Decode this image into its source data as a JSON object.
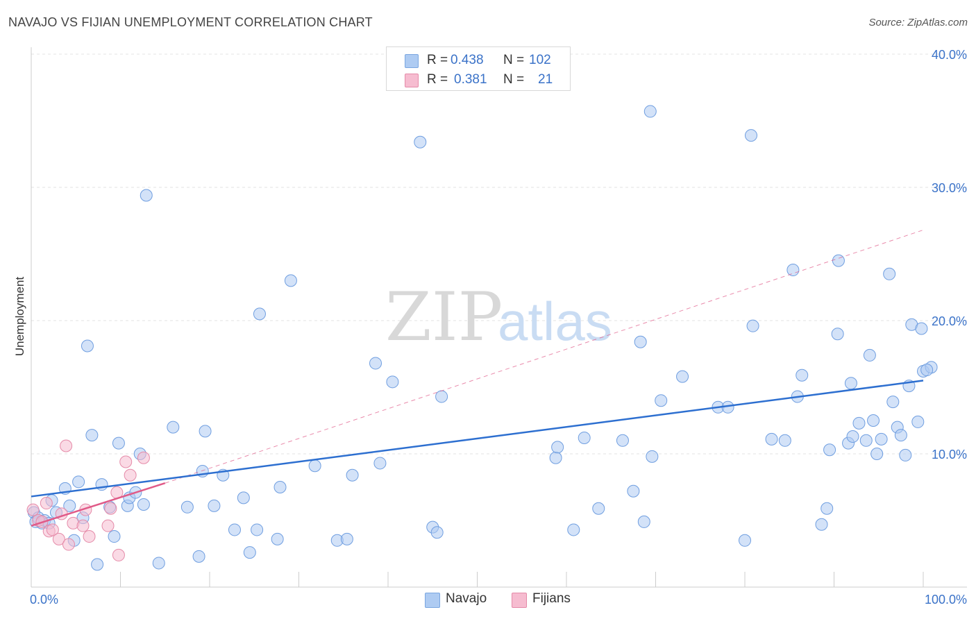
{
  "title": "NAVAJO VS FIJIAN UNEMPLOYMENT CORRELATION CHART",
  "source": "Source: ZipAtlas.com",
  "watermark": {
    "part1": "ZIP",
    "part2": "atlas"
  },
  "legend": {
    "rows": [
      {
        "r_label": "R =",
        "r_value": "0.438",
        "n_label": "N =",
        "n_value": "102",
        "color": "#aecbf2"
      },
      {
        "r_label": "R =",
        "r_value": "0.381",
        "n_label": "N =",
        "n_value": "21",
        "color": "#f6bcd0"
      }
    ]
  },
  "bottom_legend": [
    {
      "label": "Navajo",
      "color": "#aecbf2"
    },
    {
      "label": "Fijians",
      "color": "#f6bcd0"
    }
  ],
  "chart_data": {
    "type": "scatter",
    "title": "NAVAJO VS FIJIAN UNEMPLOYMENT CORRELATION CHART",
    "xlabel": "",
    "ylabel": "Unemployment",
    "xlim": [
      0,
      100
    ],
    "ylim": [
      0,
      40
    ],
    "x_tick_labels": [
      "0.0%",
      "100.0%"
    ],
    "y_ticks": [
      10,
      20,
      30,
      40
    ],
    "y_tick_labels": [
      "10.0%",
      "20.0%",
      "30.0%",
      "40.0%"
    ],
    "grid": true,
    "legend_position": "top-center",
    "colors": {
      "navajo_fill": "#aecbf2",
      "navajo_stroke": "#6f9ee0",
      "navajo_line": "#2d6fd0",
      "fijian_fill": "#f6bcd0",
      "fijian_stroke": "#e58aa8",
      "fijian_line": "#e05a88"
    },
    "series": [
      {
        "name": "Navajo",
        "trend": {
          "x": [
            0,
            100
          ],
          "y": [
            6.8,
            15.5
          ]
        },
        "points": [
          [
            0.3,
            5.6
          ],
          [
            0.5,
            4.9
          ],
          [
            0.8,
            5.2
          ],
          [
            1.2,
            4.8
          ],
          [
            1.5,
            5.0
          ],
          [
            2.0,
            4.8
          ],
          [
            2.3,
            6.5
          ],
          [
            2.8,
            5.6
          ],
          [
            3.8,
            7.4
          ],
          [
            4.3,
            6.1
          ],
          [
            4.8,
            3.5
          ],
          [
            5.3,
            7.9
          ],
          [
            5.8,
            5.2
          ],
          [
            6.3,
            18.1
          ],
          [
            6.8,
            11.4
          ],
          [
            7.4,
            1.7
          ],
          [
            7.9,
            7.7
          ],
          [
            8.8,
            6.0
          ],
          [
            9.3,
            3.8
          ],
          [
            9.8,
            10.8
          ],
          [
            10.8,
            6.1
          ],
          [
            11.0,
            6.7
          ],
          [
            11.7,
            7.1
          ],
          [
            12.6,
            6.2
          ],
          [
            12.2,
            10.0
          ],
          [
            12.9,
            29.4
          ],
          [
            14.3,
            1.8
          ],
          [
            15.9,
            12.0
          ],
          [
            17.5,
            6.0
          ],
          [
            18.8,
            2.3
          ],
          [
            19.2,
            8.7
          ],
          [
            19.5,
            11.7
          ],
          [
            20.5,
            6.1
          ],
          [
            21.5,
            8.4
          ],
          [
            22.8,
            4.3
          ],
          [
            23.8,
            6.7
          ],
          [
            24.5,
            2.6
          ],
          [
            25.3,
            4.3
          ],
          [
            25.6,
            20.5
          ],
          [
            27.6,
            3.6
          ],
          [
            27.9,
            7.5
          ],
          [
            29.1,
            23.0
          ],
          [
            31.8,
            9.1
          ],
          [
            34.3,
            3.5
          ],
          [
            35.4,
            3.6
          ],
          [
            36.0,
            8.4
          ],
          [
            38.6,
            16.8
          ],
          [
            39.1,
            9.3
          ],
          [
            40.5,
            15.4
          ],
          [
            43.6,
            33.4
          ],
          [
            45.0,
            4.5
          ],
          [
            45.5,
            4.1
          ],
          [
            46.0,
            14.3
          ],
          [
            58.8,
            9.7
          ],
          [
            59.0,
            10.5
          ],
          [
            60.8,
            4.3
          ],
          [
            62.0,
            11.2
          ],
          [
            63.6,
            5.9
          ],
          [
            66.3,
            11.0
          ],
          [
            67.5,
            7.2
          ],
          [
            68.3,
            18.4
          ],
          [
            68.7,
            4.9
          ],
          [
            69.6,
            9.8
          ],
          [
            69.4,
            35.7
          ],
          [
            70.6,
            14.0
          ],
          [
            73.0,
            15.8
          ],
          [
            77.0,
            13.5
          ],
          [
            78.1,
            13.5
          ],
          [
            80.0,
            3.5
          ],
          [
            80.7,
            33.9
          ],
          [
            80.9,
            19.6
          ],
          [
            83.0,
            11.1
          ],
          [
            84.5,
            11.0
          ],
          [
            85.4,
            23.8
          ],
          [
            85.9,
            14.3
          ],
          [
            86.4,
            15.9
          ],
          [
            88.6,
            4.7
          ],
          [
            89.2,
            5.9
          ],
          [
            89.5,
            10.3
          ],
          [
            90.5,
            24.5
          ],
          [
            90.4,
            19.0
          ],
          [
            91.6,
            10.8
          ],
          [
            91.9,
            15.3
          ],
          [
            92.1,
            11.3
          ],
          [
            92.8,
            12.3
          ],
          [
            93.6,
            11.0
          ],
          [
            94.0,
            17.4
          ],
          [
            94.4,
            12.5
          ],
          [
            94.8,
            10.0
          ],
          [
            95.3,
            11.1
          ],
          [
            96.2,
            23.5
          ],
          [
            96.6,
            13.9
          ],
          [
            97.1,
            12.0
          ],
          [
            97.5,
            11.4
          ],
          [
            98.0,
            9.9
          ],
          [
            98.4,
            15.1
          ],
          [
            98.7,
            19.7
          ],
          [
            99.4,
            12.4
          ],
          [
            99.8,
            19.4
          ],
          [
            100.0,
            16.2
          ],
          [
            100.9,
            16.5
          ],
          [
            100.4,
            16.3
          ]
        ]
      },
      {
        "name": "Fijians",
        "trend": {
          "x": [
            0,
            15
          ],
          "y": [
            4.6,
            7.8
          ]
        },
        "trend_extension": {
          "x": [
            15,
            100
          ],
          "y": [
            7.8,
            26.8
          ]
        },
        "points": [
          [
            0.2,
            5.8
          ],
          [
            0.8,
            5.0
          ],
          [
            1.2,
            4.9
          ],
          [
            1.7,
            6.3
          ],
          [
            2.0,
            4.2
          ],
          [
            2.4,
            4.3
          ],
          [
            3.1,
            3.6
          ],
          [
            3.4,
            5.5
          ],
          [
            3.9,
            10.6
          ],
          [
            4.2,
            3.2
          ],
          [
            4.7,
            4.8
          ],
          [
            5.8,
            4.6
          ],
          [
            6.1,
            5.8
          ],
          [
            6.5,
            3.8
          ],
          [
            8.6,
            4.6
          ],
          [
            8.9,
            5.9
          ],
          [
            9.6,
            7.1
          ],
          [
            9.8,
            2.4
          ],
          [
            10.6,
            9.4
          ],
          [
            11.1,
            8.4
          ],
          [
            12.6,
            9.7
          ]
        ]
      }
    ]
  }
}
